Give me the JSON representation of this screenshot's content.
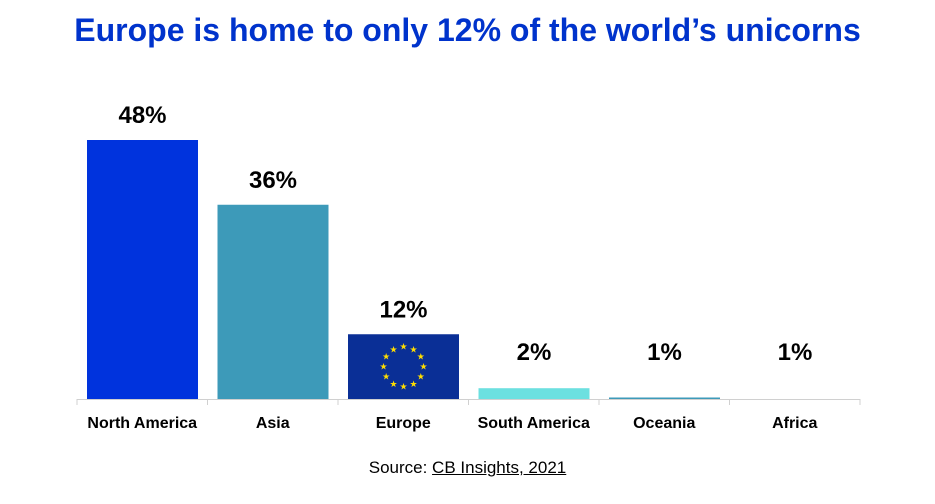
{
  "chart_data": {
    "type": "bar",
    "title": "Europe is home to only 12% of the world’s unicorns",
    "categories": [
      "North America",
      "Asia",
      "Europe",
      "South America",
      "Oceania",
      "Africa"
    ],
    "values": [
      48,
      36,
      12,
      2,
      1,
      1
    ],
    "value_labels": [
      "48%",
      "36%",
      "12%",
      "2%",
      "1%",
      "1%"
    ],
    "unit": "%",
    "ylim": [
      0,
      50
    ],
    "grid": false,
    "legend": "none",
    "bar_colors": [
      "#0033dd",
      "#3d9ab9",
      "#0a2f96",
      "#6ce0e0",
      "#3d9ab9",
      "#3d9ab9"
    ],
    "bar_fills": [
      "solid",
      "solid",
      "eu-flag-icon",
      "solid",
      "solid",
      "solid"
    ]
  },
  "source": {
    "prefix": "Source: ",
    "link_text": "CB Insights, 2021"
  },
  "colors": {
    "title": "#0033cc",
    "axis": "#d0d0d0",
    "eu_star": "#ffdd00"
  }
}
